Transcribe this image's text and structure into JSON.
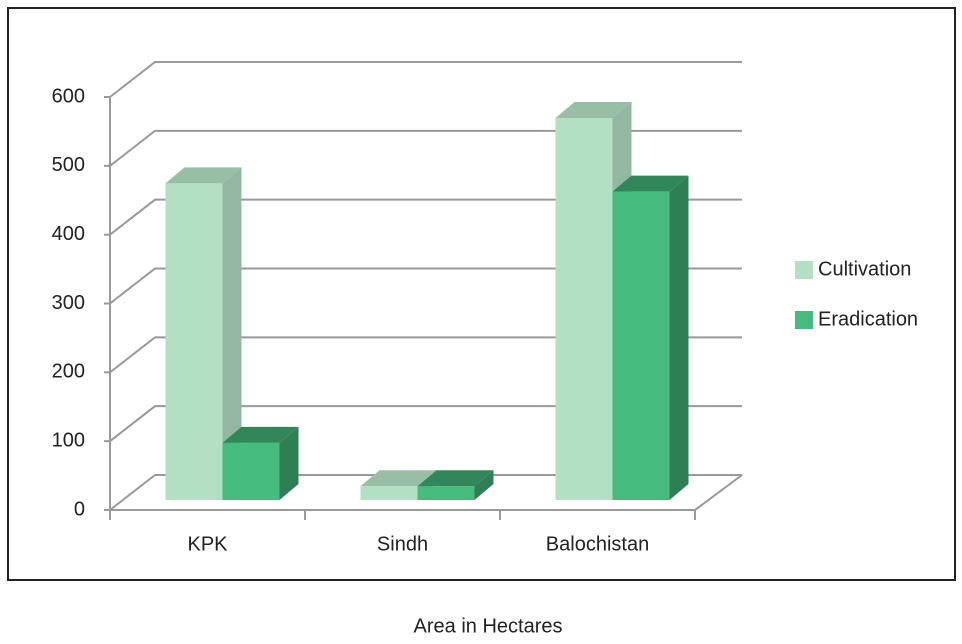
{
  "chart_data": {
    "type": "bar3d",
    "title": "Area in Hectares",
    "categories": [
      "KPK",
      "Sindh",
      "Balochistan"
    ],
    "series": [
      {
        "name": "Cultivation",
        "color": "#b3dfc3",
        "values": [
          460,
          20,
          555
        ]
      },
      {
        "name": "Eradication",
        "color": "#45bb7d",
        "values": [
          83,
          20,
          448
        ]
      }
    ],
    "ylim": [
      0,
      600
    ],
    "yticks": [
      0,
      100,
      200,
      300,
      400,
      500,
      600
    ],
    "grid": true,
    "legend": "right"
  }
}
